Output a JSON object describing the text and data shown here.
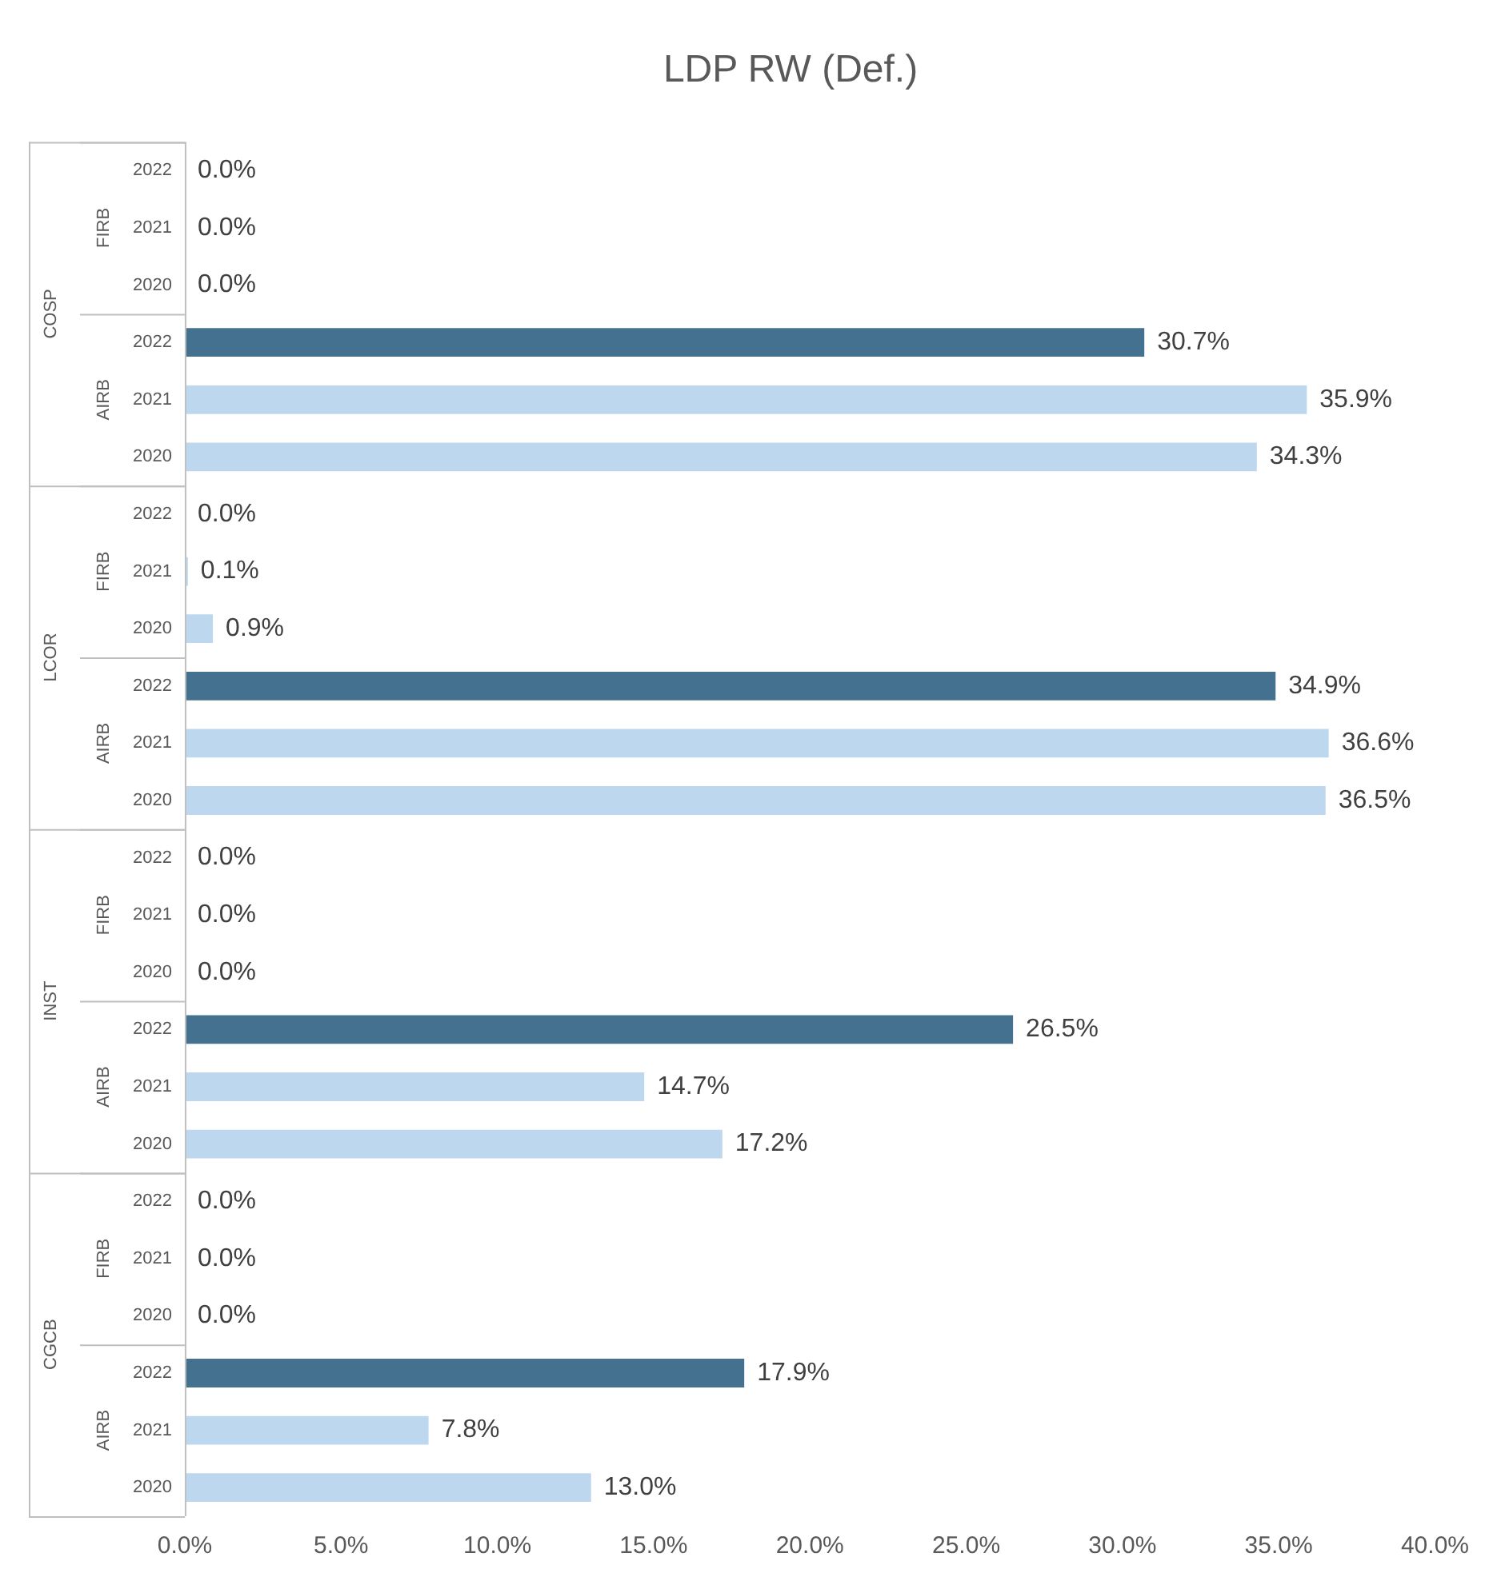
{
  "chart_data": {
    "type": "bar",
    "orientation": "horizontal",
    "title": "LDP RW (Def.)",
    "categories": [
      "2022",
      "2021",
      "2020",
      "2022",
      "2021",
      "2020",
      "2022",
      "2021",
      "2020",
      "2022",
      "2021",
      "2020",
      "2022",
      "2021",
      "2020",
      "2022",
      "2021",
      "2020",
      "2022",
      "2021",
      "2020",
      "2022",
      "2021",
      "2020"
    ],
    "values": [
      0,
      0,
      0,
      30.7,
      35.9,
      34.3,
      0,
      0.1,
      0.9,
      34.9,
      36.6,
      36.5,
      0,
      0,
      0,
      26.5,
      14.7,
      17.2,
      0,
      0,
      0,
      17.9,
      7.8,
      13.0
    ],
    "colors": [
      "#44718f",
      "#bdd7ee",
      "#bdd7ee",
      "#44718f",
      "#bdd7ee",
      "#bdd7ee",
      "#44718f",
      "#bdd7ee",
      "#bdd7ee",
      "#44718f",
      "#bdd7ee",
      "#bdd7ee",
      "#44718f",
      "#bdd7ee",
      "#bdd7ee",
      "#44718f",
      "#bdd7ee",
      "#bdd7ee",
      "#44718f",
      "#bdd7ee",
      "#bdd7ee",
      "#44718f",
      "#bdd7ee",
      "#bdd7ee"
    ],
    "value_labels": [
      "0.0%",
      "0.0%",
      "0.0%",
      "30.7%",
      "35.9%",
      "34.3%",
      "0.0%",
      "0.1%",
      "0.9%",
      "34.9%",
      "36.6%",
      "36.5%",
      "0.0%",
      "0.0%",
      "0.0%",
      "26.5%",
      "14.7%",
      "17.2%",
      "0.0%",
      "0.0%",
      "0.0%",
      "17.9%",
      "7.8%",
      "13.0%"
    ],
    "xlim": [
      0,
      40
    ],
    "xticks": [
      {
        "value": 0,
        "label": "0.0%"
      },
      {
        "value": 5,
        "label": "5.0%"
      },
      {
        "value": 10,
        "label": "10.0%"
      },
      {
        "value": 15,
        "label": "15.0%"
      },
      {
        "value": 20,
        "label": "20.0%"
      },
      {
        "value": 25,
        "label": "25.0%"
      },
      {
        "value": 30,
        "label": "30.0%"
      },
      {
        "value": 35,
        "label": "35.0%"
      },
      {
        "value": 40,
        "label": "40.0%"
      }
    ],
    "annotations": [
      "FIRB",
      "AIRB",
      "FIRB",
      "AIRB",
      "FIRB",
      "AIRB",
      "FIRB",
      "AIRB",
      "COSP",
      "LCOR",
      "INST",
      "CGCB"
    ],
    "grid": false,
    "legend": false
  }
}
